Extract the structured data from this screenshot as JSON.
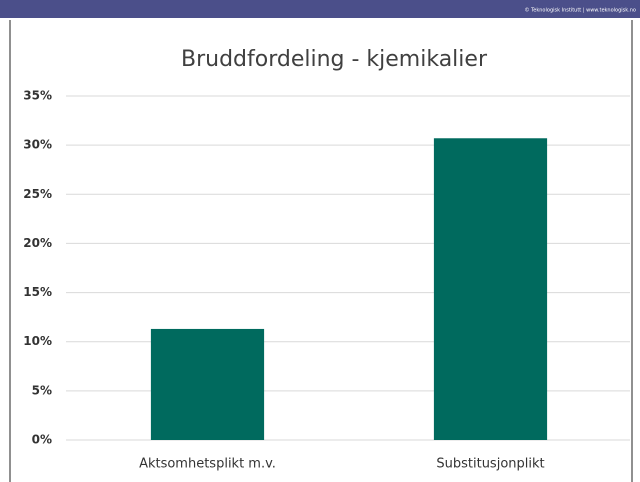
{
  "banner": "© Teknologisk Institutt  |  www.teknologisk.no",
  "chart_data": {
    "type": "bar",
    "title": "Bruddfordeling - kjemikalier",
    "categories": [
      "Aktsomhetsplikt m.v.",
      "Substitusjonplikt"
    ],
    "values": [
      11.3,
      30.7
    ],
    "color": "#006a5e",
    "ylim": [
      0,
      35
    ],
    "yticks": [
      {
        "value": 0,
        "label": "0%"
      },
      {
        "value": 5,
        "label": "5%"
      },
      {
        "value": 10,
        "label": "10%"
      },
      {
        "value": 15,
        "label": "15%"
      },
      {
        "value": 20,
        "label": "20%"
      },
      {
        "value": 25,
        "label": "25%"
      },
      {
        "value": 30,
        "label": "30%"
      },
      {
        "value": 35,
        "label": "35%"
      }
    ],
    "grid": true
  }
}
